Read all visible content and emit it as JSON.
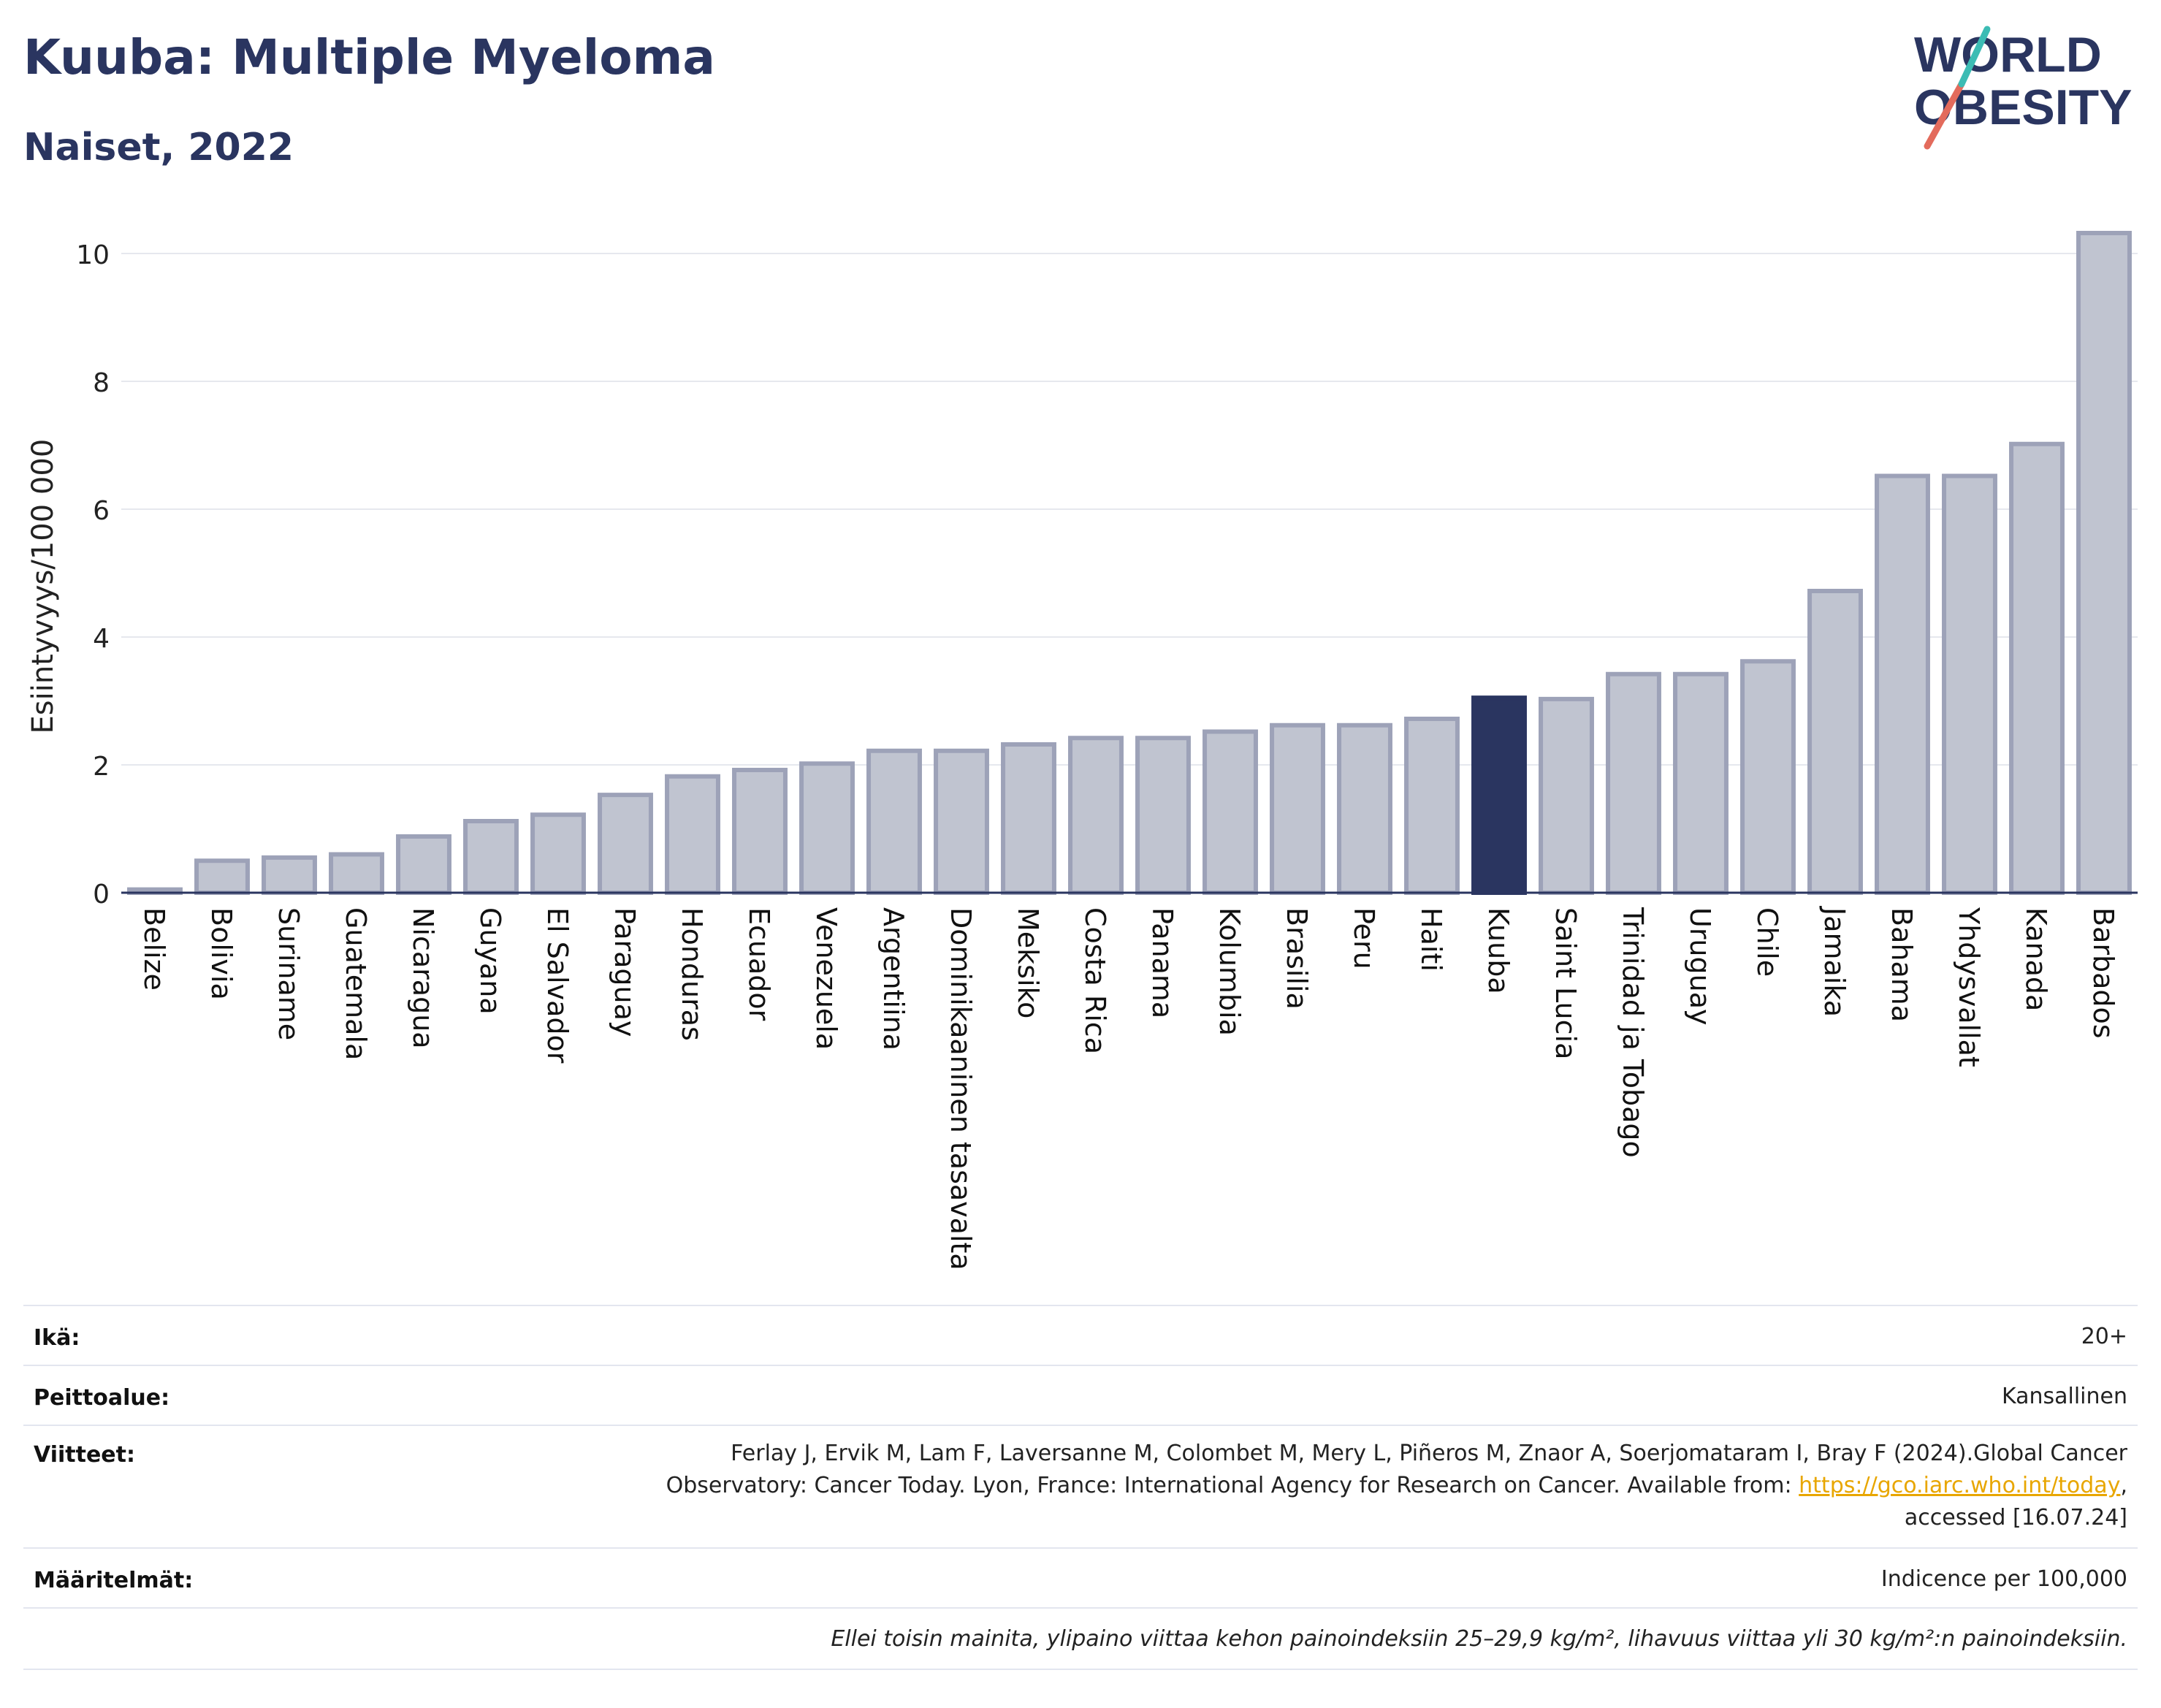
{
  "header": {
    "title": "Kuuba: Multiple Myeloma",
    "subtitle": "Naiset, 2022"
  },
  "logo": {
    "line1": "WORLD",
    "line2": "OBESITY"
  },
  "colors": {
    "highlight": "#2a3560",
    "bar": "#c0c4d0",
    "bar_border": "#9da2b8",
    "title": "#2a3560",
    "link": "#e8a600"
  },
  "chart_data": {
    "type": "bar",
    "ylabel": "Esiintyvyys/100 000",
    "ylim": [
      0,
      10.5
    ],
    "yticks": [
      0,
      2,
      4,
      6,
      8,
      10
    ],
    "grid": true,
    "highlight": "Kuuba",
    "categories": [
      "Belize",
      "Bolivia",
      "Suriname",
      "Guatemala",
      "Nicaragua",
      "Guyana",
      "El Salvador",
      "Paraguay",
      "Honduras",
      "Ecuador",
      "Venezuela",
      "Argentiina",
      "Dominikaaninen tasavalta",
      "Meksiko",
      "Costa Rica",
      "Panama",
      "Kolumbia",
      "Brasilia",
      "Peru",
      "Haiti",
      "Kuuba",
      "Saint Lucia",
      "Trinidad ja Tobago",
      "Uruguay",
      "Chile",
      "Jamaika",
      "Bahama",
      "Yhdysvallat",
      "Kanada",
      "Barbados"
    ],
    "values": [
      0.05,
      0.5,
      0.55,
      0.6,
      0.88,
      1.12,
      1.22,
      1.53,
      1.82,
      1.92,
      2.02,
      2.22,
      2.22,
      2.32,
      2.42,
      2.42,
      2.52,
      2.62,
      2.62,
      2.72,
      3.05,
      3.03,
      3.42,
      3.42,
      3.62,
      4.72,
      6.52,
      6.52,
      7.02,
      10.32
    ]
  },
  "info": {
    "age_label": "Ikä:",
    "age_value": "20+",
    "coverage_label": "Peittoalue:",
    "coverage_value": "Kansallinen",
    "refs_label": "Viitteet:",
    "refs_line1": "Ferlay J, Ervik M, Lam F, Laversanne M, Colombet M, Mery L, Piñeros M, Znaor A, Soerjomataram I, Bray F (2024).Global Cancer",
    "refs_line2_pre": "Observatory: Cancer Today. Lyon, France: International Agency for Research on Cancer. Available from: ",
    "refs_link": "https://gco.iarc.who.int/today",
    "refs_line2_post": ",",
    "refs_line3": "accessed [16.07.24]",
    "def_label": "Määritelmät:",
    "def_value": "Indicence per 100,000",
    "note": "Ellei toisin mainita, ylipaino viittaa kehon painoindeksiin 25–29,9 kg/m², lihavuus viittaa yli 30 kg/m²:n painoindeksiin."
  }
}
